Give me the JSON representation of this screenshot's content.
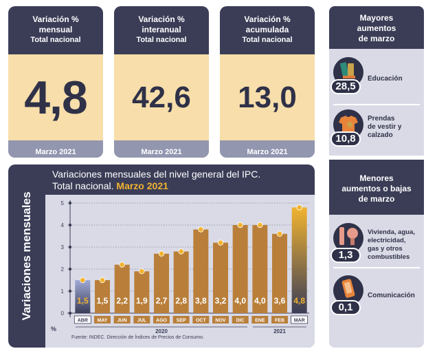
{
  "cards": [
    {
      "title": "Variación %",
      "title2": "mensual",
      "subtitle": "Total nacional",
      "value": "4,8",
      "footer": "Marzo 2021"
    },
    {
      "title": "Variación %",
      "title2": "interanual",
      "subtitle": "Total nacional",
      "value": "42,6",
      "footer": "Marzo 2021"
    },
    {
      "title": "Variación %",
      "title2": "acumulada",
      "subtitle": "Total nacional",
      "value": "13,0",
      "footer": "Marzo 2021"
    }
  ],
  "mayores": {
    "title_l1": "Mayores",
    "title_l2": "aumentos",
    "title_l3": "de marzo",
    "items": [
      {
        "value": "28,5",
        "l1": "Educación",
        "l2": "",
        "l3": "",
        "l4": "",
        "icon": "books-icon"
      },
      {
        "value": "10,8",
        "l1": "Prendas",
        "l2": "de vestir y",
        "l3": "calzado",
        "l4": "",
        "icon": "tshirt-icon"
      }
    ]
  },
  "menores": {
    "title_l1": "Menores",
    "title_l2": "aumentos o bajas",
    "title_l3": "de marzo",
    "items": [
      {
        "value": "1,3",
        "l1": "Vivienda, agua,",
        "l2": "electricidad,",
        "l3": "gas y otros",
        "l4": "combustibles",
        "icon": "lightbulb-icon"
      },
      {
        "value": "0,1",
        "l1": "Comunicación",
        "l2": "",
        "l3": "",
        "l4": "",
        "icon": "phone-icon"
      }
    ]
  },
  "chart_panel": {
    "ylabel": "Variaciones mensuales",
    "title_l1": "Variaciones mensuales del nivel general del IPC.",
    "title_l2a": "Total nacional. ",
    "title_l2b": "Marzo 2021",
    "source": "Fuente: INDEC. Dirección de Índices de Precios de Consumo."
  },
  "chart_data": {
    "type": "bar",
    "categories": [
      "ABR",
      "MAY",
      "JUN",
      "JUL",
      "AGO",
      "SEP",
      "OCT",
      "NOV",
      "DIC",
      "ENE",
      "FEB",
      "MAR"
    ],
    "values": [
      1.5,
      1.5,
      2.2,
      1.9,
      2.7,
      2.8,
      3.8,
      3.2,
      4.0,
      4.0,
      3.6,
      4.8
    ],
    "labels": [
      "1,5",
      "1,5",
      "2,2",
      "1,9",
      "2,7",
      "2,8",
      "3,8",
      "3,2",
      "4,0",
      "4,0",
      "3,6",
      "4,8"
    ],
    "yticks": [
      0,
      1,
      2,
      3,
      4,
      5
    ],
    "ylim": [
      0,
      5
    ],
    "yunit": "%",
    "year_groups": [
      {
        "label": "2020",
        "from": 0,
        "to": 8
      },
      {
        "label": "2021",
        "from": 9,
        "to": 11
      }
    ],
    "colors": {
      "bar": "#b97f3a",
      "highlight_top": "#f1b330",
      "highlight_bottom": "#3b3d57",
      "first_top": "#9fa9d6",
      "dot": "#f1b330"
    }
  }
}
